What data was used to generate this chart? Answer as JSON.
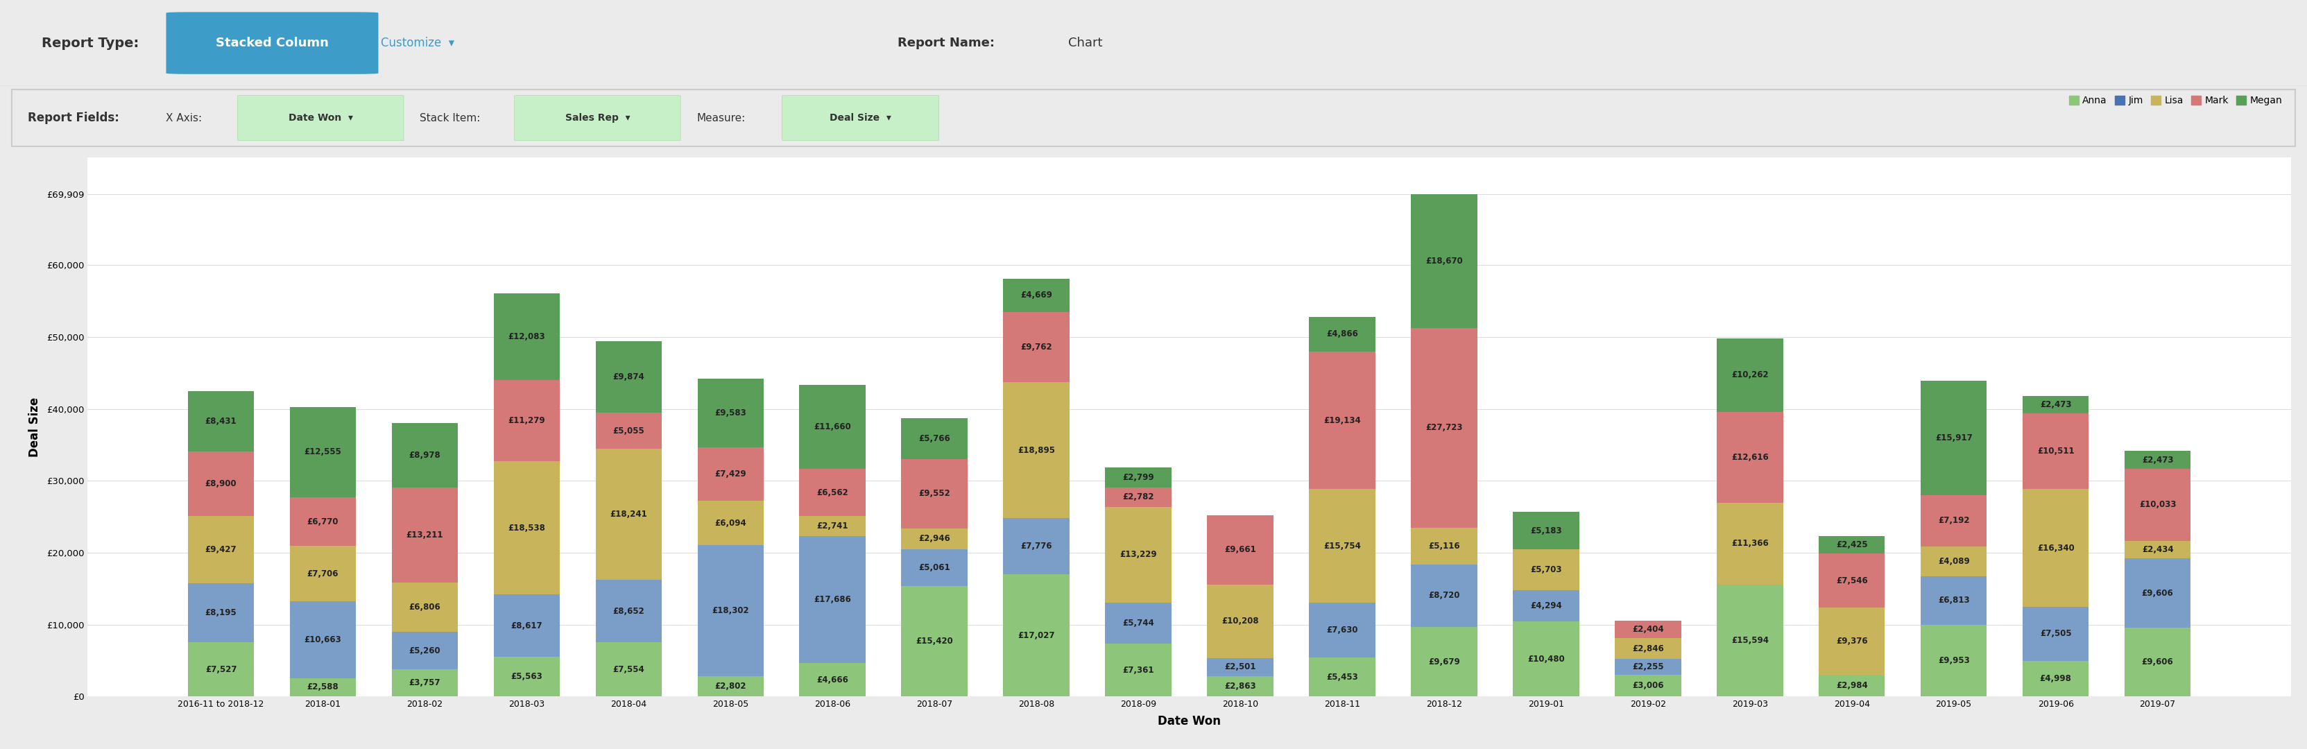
{
  "categories": [
    "2016-11 to 2018-12",
    "2018-01",
    "2018-02",
    "2018-03",
    "2018-04",
    "2018-05",
    "2018-06",
    "2018-07",
    "2018-08",
    "2018-09",
    "2018-10",
    "2018-11",
    "2018-12",
    "2019-01",
    "2019-02",
    "2019-03",
    "2019-04",
    "2019-05",
    "2019-06",
    "2019-07"
  ],
  "series": {
    "Anna": [
      7527,
      2588,
      3757,
      5563,
      7554,
      2802,
      4666,
      15420,
      17027,
      7361,
      2863,
      5453,
      9679,
      10480,
      3006,
      15594,
      2984,
      9953,
      4998,
      9606
    ],
    "Jim": [
      8195,
      10663,
      5260,
      8617,
      8652,
      18302,
      17686,
      5061,
      7776,
      5744,
      2501,
      7630,
      8720,
      4294,
      2255,
      0,
      0,
      6813,
      7505,
      9606
    ],
    "Lisa": [
      9427,
      7706,
      6806,
      18538,
      18241,
      6094,
      2741,
      2946,
      18895,
      13229,
      10208,
      15754,
      5116,
      5703,
      2846,
      11366,
      9376,
      4089,
      16340,
      2434
    ],
    "Mark": [
      8900,
      6770,
      13211,
      11279,
      5055,
      7429,
      6562,
      9552,
      9762,
      2782,
      9661,
      19134,
      27723,
      0,
      2404,
      12616,
      7546,
      7192,
      10511,
      10033
    ],
    "Megan": [
      8431,
      12555,
      8978,
      12083,
      9874,
      9583,
      11660,
      5766,
      4669,
      2799,
      0,
      4866,
      18670,
      5183,
      0,
      10262,
      2425,
      15917,
      2473,
      2473
    ]
  },
  "series_order": [
    "Anna",
    "Jim",
    "Lisa",
    "Mark",
    "Megan"
  ],
  "colors": {
    "Anna": "#8dc67a",
    "Jim": "#7b9ec8",
    "Lisa": "#c8b45a",
    "Mark": "#d47878",
    "Megan": "#5a9e5a"
  },
  "title": "Chart",
  "xlabel": "Date Won",
  "ylabel": "Deal Size",
  "ylim_max": 75000,
  "yticks": [
    0,
    10000,
    20000,
    30000,
    40000,
    50000,
    60000,
    69909
  ],
  "ytick_labels": [
    "£0",
    "£10,000",
    "£20,000",
    "£30,000",
    "£40,000",
    "£50,000",
    "£60,000",
    "£69,909"
  ],
  "bg_color": "#ebebeb",
  "panel_bg": "#f5f5f5",
  "plot_bg": "#ffffff",
  "subheader_bg": "#ffffff",
  "header_border": "#cccccc"
}
